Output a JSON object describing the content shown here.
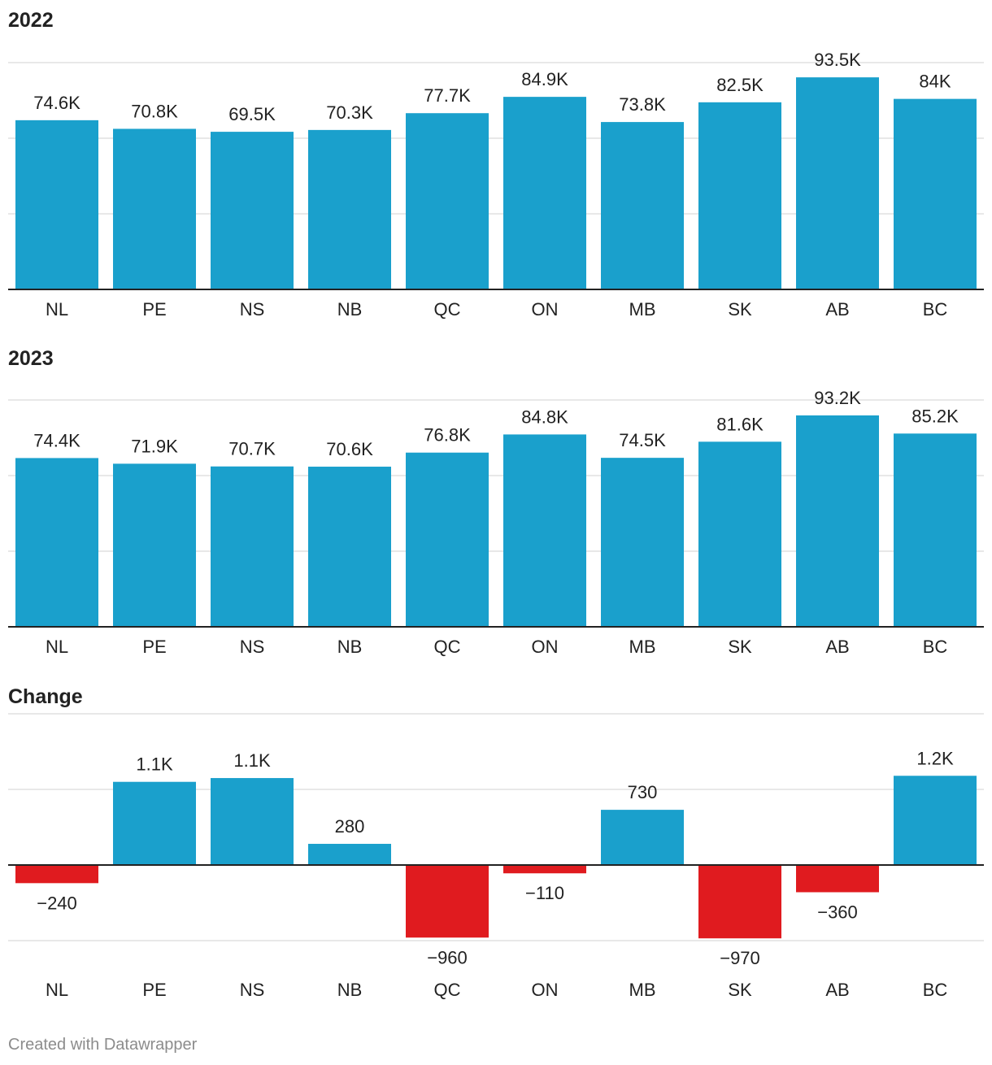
{
  "colors": {
    "positive": "#1aa0cc",
    "negative": "#e01b1f",
    "grid": "#e1e1e1",
    "axis": "#222222",
    "text": "#222222",
    "credit": "#8c8c8c"
  },
  "chart_data": [
    {
      "type": "bar",
      "title": "2022",
      "categories": [
        "NL",
        "PE",
        "NS",
        "NB",
        "QC",
        "ON",
        "MB",
        "SK",
        "AB",
        "BC"
      ],
      "values": [
        74600,
        70800,
        69500,
        70300,
        77700,
        84900,
        73800,
        82500,
        93500,
        84000
      ],
      "labels": [
        "74.6K",
        "70.8K",
        "69.5K",
        "70.3K",
        "77.7K",
        "84.9K",
        "73.8K",
        "82.5K",
        "93.5K",
        "84K"
      ],
      "ylim": [
        0,
        100000
      ],
      "gridlines": [
        0,
        33333,
        66667,
        100000
      ],
      "grid": true,
      "xlabel": "",
      "ylabel": ""
    },
    {
      "type": "bar",
      "title": "2023",
      "categories": [
        "NL",
        "PE",
        "NS",
        "NB",
        "QC",
        "ON",
        "MB",
        "SK",
        "AB",
        "BC"
      ],
      "values": [
        74400,
        71900,
        70700,
        70600,
        76800,
        84800,
        74500,
        81600,
        93200,
        85200
      ],
      "labels": [
        "74.4K",
        "71.9K",
        "70.7K",
        "70.6K",
        "76.8K",
        "84.8K",
        "74.5K",
        "81.6K",
        "93.2K",
        "85.2K"
      ],
      "ylim": [
        0,
        100000
      ],
      "gridlines": [
        0,
        33333,
        66667,
        100000
      ],
      "grid": true,
      "xlabel": "",
      "ylabel": ""
    },
    {
      "type": "bar",
      "title": "Change",
      "categories": [
        "NL",
        "PE",
        "NS",
        "NB",
        "QC",
        "ON",
        "MB",
        "SK",
        "AB",
        "BC"
      ],
      "values": [
        -240,
        1100,
        1150,
        280,
        -960,
        -110,
        730,
        -970,
        -360,
        1180
      ],
      "labels": [
        "−240",
        "1.1K",
        "1.1K",
        "280",
        "−960",
        "−110",
        "730",
        "−970",
        "−360",
        "1.2K"
      ],
      "ylim": [
        -1000,
        2000
      ],
      "gridlines": [
        -1000,
        0,
        1000,
        2000
      ],
      "grid": true,
      "xlabel": "",
      "ylabel": ""
    }
  ],
  "footer": {
    "credit": "Created with Datawrapper"
  }
}
